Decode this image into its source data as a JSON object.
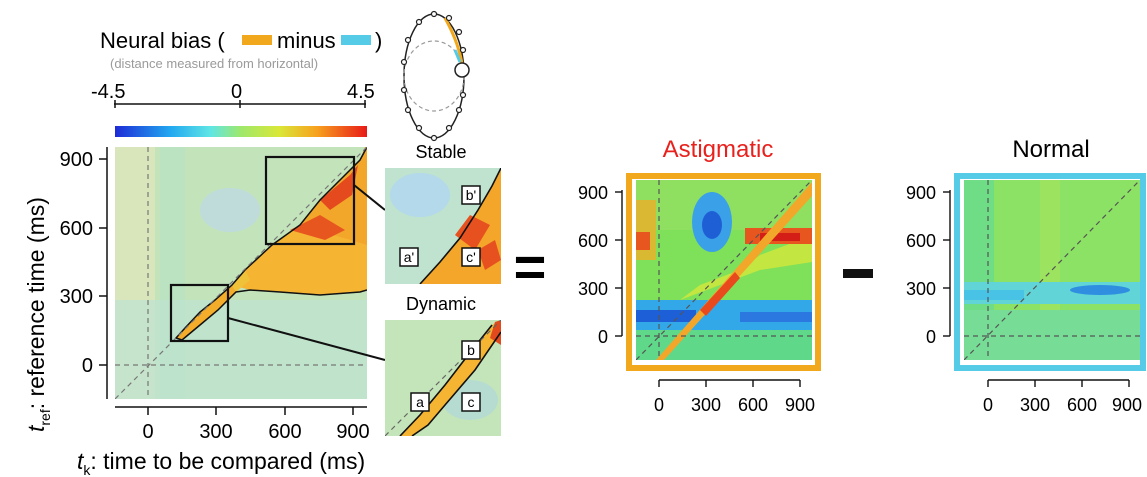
{
  "legend": {
    "title_prefix": "Neural bias (",
    "minus_word": "minus",
    "title_suffix": ")",
    "subtitle": "(distance measured from horizontal)",
    "ticks": [
      "-4.5",
      "0",
      "4.5"
    ],
    "minus_color": "#f2a81d",
    "minus_color_b": "#55cbe8"
  },
  "axes": {
    "ylabel_var": "t",
    "ylabel_sub": "ref",
    "ylabel_text": ": reference time (ms)",
    "xlabel_var": "t",
    "xlabel_sub": "k",
    "xlabel_text": ": time to be compared (ms)"
  },
  "insets": {
    "stable_title": "Stable",
    "dynamic_title": "Dynamic",
    "stable_labels": [
      "a'",
      "b'",
      "c'"
    ],
    "dynamic_labels": [
      "a",
      "b",
      "c"
    ]
  },
  "operators": {
    "equals": "=",
    "minus": "-"
  },
  "chart_data": [
    {
      "type": "heatmap",
      "title": "",
      "xlabel": "tk: time to be compared (ms)",
      "ylabel": "tref: reference time (ms)",
      "x_ticks": [
        0,
        300,
        600,
        900
      ],
      "y_ticks": [
        0,
        300,
        600,
        900
      ],
      "xlim": [
        -150,
        960
      ],
      "ylim": [
        -150,
        960
      ],
      "color_scale": {
        "min": -4.5,
        "max": 4.5,
        "palette": "jet"
      },
      "annotations": [
        "Stable",
        "Dynamic"
      ]
    },
    {
      "type": "heatmap",
      "title": "Astigmatic",
      "title_color": "#e8211d",
      "frame_color": "#f2a81d",
      "x_ticks": [
        0,
        300,
        600,
        900
      ],
      "y_ticks": [
        0,
        300,
        600,
        900
      ]
    },
    {
      "type": "heatmap",
      "title": "Normal",
      "title_color": "#111111",
      "frame_color": "#55cbe8",
      "x_ticks": [
        0,
        300,
        600,
        900
      ],
      "y_ticks": [
        0,
        300,
        600,
        900
      ]
    }
  ]
}
